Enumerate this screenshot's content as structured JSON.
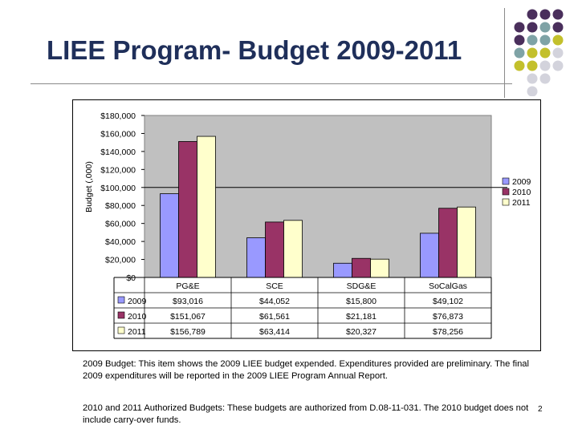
{
  "slide": {
    "title": "LIEE Program- Budget 2009-2011",
    "note1": "2009 Budget: This item shows the 2009 LIEE budget expended.  Expenditures provided are preliminary. The final 2009 expenditures will be reported in the 2009 LIEE Program Annual Report.",
    "note2": "2010 and 2011 Authorized Budgets: These budgets are authorized from D.08-11-031.  The 2010 budget does not include carry-over funds.",
    "page_number": "2"
  },
  "colors": {
    "title": "#1f2f5a",
    "dot_purple": "#4a2f5c",
    "dot_teal": "#7fa3a6",
    "dot_olive": "#c3c02c",
    "dot_gray": "#d3d3dc"
  },
  "chart_data": {
    "type": "bar",
    "ylabel": "Budget (,000)",
    "ylim": [
      0,
      180000
    ],
    "yticks": [
      "$0",
      "$20,000",
      "$40,000",
      "$60,000",
      "$80,000",
      "$100,000",
      "$120,000",
      "$140,000",
      "$160,000",
      "$180,000"
    ],
    "categories": [
      "PG&E",
      "SCE",
      "SDG&E",
      "SoCalGas"
    ],
    "series": [
      {
        "name": "2009",
        "color": "#9999ff",
        "values": [
          93016,
          44052,
          15800,
          49102
        ],
        "labels": [
          "$93,016",
          "$44,052",
          "$15,800",
          "$49,102"
        ]
      },
      {
        "name": "2010",
        "color": "#993366",
        "values": [
          151067,
          61561,
          21181,
          76873
        ],
        "labels": [
          "$151,067",
          "$61,561",
          "$21,181",
          "$76,873"
        ]
      },
      {
        "name": "2011",
        "color": "#ffffcc",
        "values": [
          156789,
          63414,
          20327,
          78256
        ],
        "labels": [
          "$156,789",
          "$63,414",
          "$20,327",
          "$78,256"
        ]
      }
    ],
    "reference_line": 100000,
    "legend_position": "right",
    "grid": false,
    "data_table": true
  }
}
